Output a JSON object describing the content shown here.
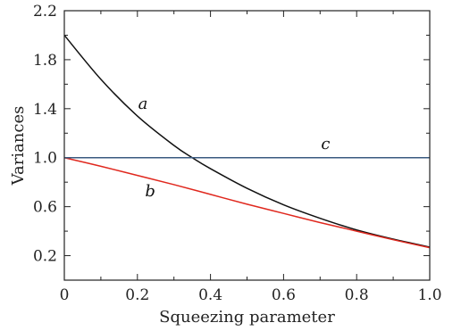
{
  "chart_data": {
    "type": "line",
    "title": "",
    "xlabel": "Squeezing parameter",
    "ylabel": "Variances",
    "xlim": [
      0,
      1.0
    ],
    "ylim": [
      0.0,
      2.2
    ],
    "xticks": [
      0,
      0.2,
      0.4,
      0.6,
      0.8,
      1.0
    ],
    "xtick_labels": [
      "0",
      "0.2",
      "0.4",
      "0.6",
      "0.8",
      "1.0"
    ],
    "yticks": [
      0.2,
      0.6,
      1.0,
      1.4,
      1.8,
      2.2
    ],
    "ytick_labels": [
      "0.2",
      "0.6",
      "1.0",
      "1.4",
      "1.8",
      "2.2"
    ],
    "grid": false,
    "legend": "none",
    "series": [
      {
        "label": "a",
        "color": "#111111",
        "x": [
          0,
          0.1,
          0.2,
          0.3,
          0.35,
          0.4,
          0.5,
          0.6,
          0.7,
          0.8,
          0.9,
          1.0
        ],
        "y": [
          2.0,
          1.64,
          1.34,
          1.1,
          1.0,
          0.91,
          0.75,
          0.615,
          0.505,
          0.41,
          0.335,
          0.27
        ]
      },
      {
        "label": "b",
        "color": "#e0281e",
        "x": [
          0,
          0.1,
          0.2,
          0.3,
          0.4,
          0.5,
          0.6,
          0.7,
          0.8,
          0.9,
          1.0
        ],
        "y": [
          1.0,
          0.93,
          0.855,
          0.78,
          0.7,
          0.62,
          0.545,
          0.47,
          0.4,
          0.33,
          0.265
        ]
      },
      {
        "label": "c",
        "color": "#3a5a80",
        "x": [
          0,
          1.0
        ],
        "y": [
          1.0,
          1.0
        ]
      }
    ],
    "curve_labels": [
      {
        "text": "a",
        "x": 0.215,
        "y": 1.4
      },
      {
        "text": "b",
        "x": 0.235,
        "y": 0.685
      },
      {
        "text": "c",
        "x": 0.715,
        "y": 1.07
      }
    ]
  }
}
